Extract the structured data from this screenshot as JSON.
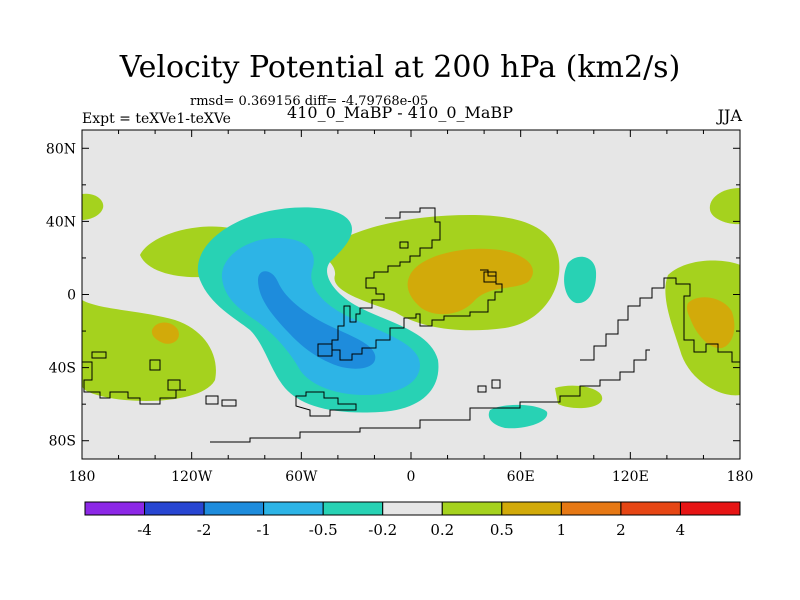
{
  "header": {
    "title": "Velocity Potential at 200 hPa (km2/s)",
    "stats": "rmsd= 0.369156 diff= -4.79768e-05",
    "experiment": "Expt = teXVe1-teXVe",
    "cases": "410_0_MaBP - 410_0_MaBP",
    "season": "JJA"
  },
  "chart_data": {
    "type": "heatmap",
    "title": "Velocity Potential at 200 hPa (km2/s)",
    "xlabel": "",
    "ylabel": "",
    "xlim": [
      -180,
      180
    ],
    "ylim": [
      -90,
      90
    ],
    "x_ticks": [
      {
        "value": -180,
        "label": "180"
      },
      {
        "value": -120,
        "label": "120W"
      },
      {
        "value": -60,
        "label": "60W"
      },
      {
        "value": 0,
        "label": "0"
      },
      {
        "value": 60,
        "label": "60E"
      },
      {
        "value": 120,
        "label": "120E"
      },
      {
        "value": 180,
        "label": "180"
      }
    ],
    "y_ticks": [
      {
        "value": 80,
        "label": "80N"
      },
      {
        "value": 40,
        "label": "40N"
      },
      {
        "value": 0,
        "label": "0"
      },
      {
        "value": -40,
        "label": "40S"
      },
      {
        "value": -80,
        "label": "80S"
      }
    ],
    "colorbar": {
      "levels": [
        -4,
        -2,
        -1,
        -0.5,
        -0.2,
        0.2,
        0.5,
        1,
        2,
        4
      ],
      "labels": [
        "-4",
        "-2",
        "-1",
        "-0.5",
        "-0.2",
        "0.2",
        "0.5",
        "1",
        "2",
        "4"
      ],
      "colors": [
        "#8c28e6",
        "#2846d2",
        "#1e8cdc",
        "#2db4e6",
        "#28d2b4",
        "#e6e6e6",
        "#a5d21e",
        "#d2aa0a",
        "#e67814",
        "#e64614",
        "#e61414"
      ]
    },
    "fields": [
      {
        "name": "western-tropical-negative-center",
        "lon": -45,
        "lat": -10,
        "level": -1,
        "description": "minimum between -2 and -1"
      },
      {
        "name": "africa-positive-center",
        "lon": 35,
        "lat": 5,
        "level": 0.5,
        "description": "maximum between 0.5 and 1"
      },
      {
        "name": "east-pacific-positive-center",
        "lon": 160,
        "lat": -10,
        "level": 0.5,
        "description": "maximum between 0.5 and 1"
      },
      {
        "name": "south-pacific-positive-center",
        "lon": -150,
        "lat": -20,
        "level": 0.5,
        "description": "maximum between 0.5 and 1"
      }
    ]
  }
}
